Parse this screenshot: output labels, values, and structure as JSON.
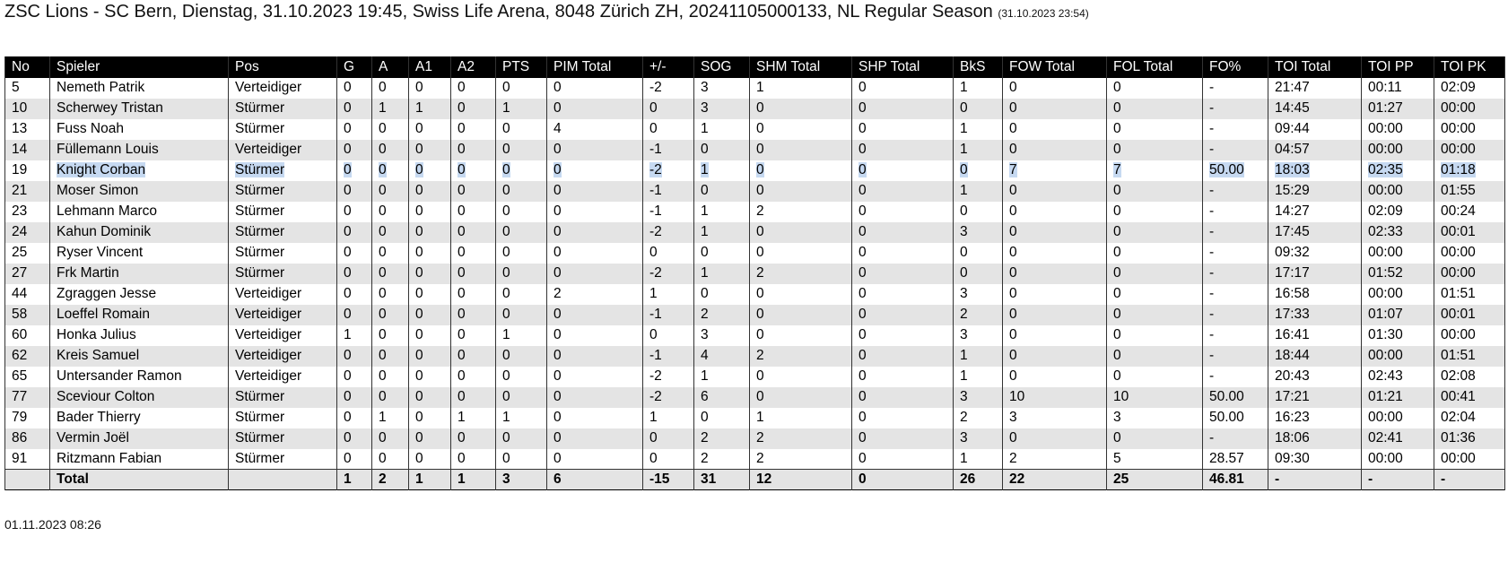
{
  "header": {
    "title": "ZSC Lions - SC Bern, Dienstag, 31.10.2023 19:45, Swiss Life Arena, 8048 Zürich ZH, 20241105000133, NL Regular Season",
    "timestamp": "(31.10.2023 23:54)"
  },
  "table": {
    "columns": [
      "No",
      "Spieler",
      "Pos",
      "G",
      "A",
      "A1",
      "A2",
      "PTS",
      "PIM Total",
      "+/-",
      "SOG",
      "SHM Total",
      "SHP Total",
      "BkS",
      "FOW Total",
      "FOL Total",
      "FO%",
      "TOI Total",
      "TOI PP",
      "TOI PK"
    ],
    "rows": [
      [
        "5",
        "Nemeth Patrik",
        "Verteidiger",
        "0",
        "0",
        "0",
        "0",
        "0",
        "0",
        "-2",
        "3",
        "1",
        "0",
        "1",
        "0",
        "0",
        "-",
        "21:47",
        "00:11",
        "02:09"
      ],
      [
        "10",
        "Scherwey Tristan",
        "Stürmer",
        "0",
        "1",
        "1",
        "0",
        "1",
        "0",
        "0",
        "3",
        "0",
        "0",
        "0",
        "0",
        "0",
        "-",
        "14:45",
        "01:27",
        "00:00"
      ],
      [
        "13",
        "Fuss Noah",
        "Stürmer",
        "0",
        "0",
        "0",
        "0",
        "0",
        "4",
        "0",
        "1",
        "0",
        "0",
        "1",
        "0",
        "0",
        "-",
        "09:44",
        "00:00",
        "00:00"
      ],
      [
        "14",
        "Füllemann Louis",
        "Verteidiger",
        "0",
        "0",
        "0",
        "0",
        "0",
        "0",
        "-1",
        "0",
        "0",
        "0",
        "1",
        "0",
        "0",
        "-",
        "04:57",
        "00:00",
        "00:00"
      ],
      [
        "19",
        "Knight Corban",
        "Stürmer",
        "0",
        "0",
        "0",
        "0",
        "0",
        "0",
        "-2",
        "1",
        "0",
        "0",
        "0",
        "7",
        "7",
        "50.00",
        "18:03",
        "02:35",
        "01:18"
      ],
      [
        "21",
        "Moser Simon",
        "Stürmer",
        "0",
        "0",
        "0",
        "0",
        "0",
        "0",
        "-1",
        "0",
        "0",
        "0",
        "1",
        "0",
        "0",
        "-",
        "15:29",
        "00:00",
        "01:55"
      ],
      [
        "23",
        "Lehmann Marco",
        "Stürmer",
        "0",
        "0",
        "0",
        "0",
        "0",
        "0",
        "-1",
        "1",
        "2",
        "0",
        "0",
        "0",
        "0",
        "-",
        "14:27",
        "02:09",
        "00:24"
      ],
      [
        "24",
        "Kahun Dominik",
        "Stürmer",
        "0",
        "0",
        "0",
        "0",
        "0",
        "0",
        "-2",
        "1",
        "0",
        "0",
        "3",
        "0",
        "0",
        "-",
        "17:45",
        "02:33",
        "00:01"
      ],
      [
        "25",
        "Ryser Vincent",
        "Stürmer",
        "0",
        "0",
        "0",
        "0",
        "0",
        "0",
        "0",
        "0",
        "0",
        "0",
        "0",
        "0",
        "0",
        "-",
        "09:32",
        "00:00",
        "00:00"
      ],
      [
        "27",
        "Frk Martin",
        "Stürmer",
        "0",
        "0",
        "0",
        "0",
        "0",
        "0",
        "-2",
        "1",
        "2",
        "0",
        "0",
        "0",
        "0",
        "-",
        "17:17",
        "01:52",
        "00:00"
      ],
      [
        "44",
        "Zgraggen Jesse",
        "Verteidiger",
        "0",
        "0",
        "0",
        "0",
        "0",
        "2",
        "1",
        "0",
        "0",
        "0",
        "3",
        "0",
        "0",
        "-",
        "16:58",
        "00:00",
        "01:51"
      ],
      [
        "58",
        "Loeffel Romain",
        "Verteidiger",
        "0",
        "0",
        "0",
        "0",
        "0",
        "0",
        "-1",
        "2",
        "0",
        "0",
        "2",
        "0",
        "0",
        "-",
        "17:33",
        "01:07",
        "00:01"
      ],
      [
        "60",
        "Honka Julius",
        "Verteidiger",
        "1",
        "0",
        "0",
        "0",
        "1",
        "0",
        "0",
        "3",
        "0",
        "0",
        "3",
        "0",
        "0",
        "-",
        "16:41",
        "01:30",
        "00:00"
      ],
      [
        "62",
        "Kreis Samuel",
        "Verteidiger",
        "0",
        "0",
        "0",
        "0",
        "0",
        "0",
        "-1",
        "4",
        "2",
        "0",
        "1",
        "0",
        "0",
        "-",
        "18:44",
        "00:00",
        "01:51"
      ],
      [
        "65",
        "Untersander Ramon",
        "Verteidiger",
        "0",
        "0",
        "0",
        "0",
        "0",
        "0",
        "-2",
        "1",
        "0",
        "0",
        "1",
        "0",
        "0",
        "-",
        "20:43",
        "02:43",
        "02:08"
      ],
      [
        "77",
        "Sceviour Colton",
        "Stürmer",
        "0",
        "0",
        "0",
        "0",
        "0",
        "0",
        "-2",
        "6",
        "0",
        "0",
        "3",
        "10",
        "10",
        "50.00",
        "17:21",
        "01:21",
        "00:41"
      ],
      [
        "79",
        "Bader Thierry",
        "Stürmer",
        "0",
        "1",
        "0",
        "1",
        "1",
        "0",
        "1",
        "0",
        "1",
        "0",
        "2",
        "3",
        "3",
        "50.00",
        "16:23",
        "00:00",
        "02:04"
      ],
      [
        "86",
        "Vermin Joël",
        "Stürmer",
        "0",
        "0",
        "0",
        "0",
        "0",
        "0",
        "0",
        "2",
        "2",
        "0",
        "3",
        "0",
        "0",
        "-",
        "18:06",
        "02:41",
        "01:36"
      ],
      [
        "91",
        "Ritzmann Fabian",
        "Stürmer",
        "0",
        "0",
        "0",
        "0",
        "0",
        "0",
        "0",
        "2",
        "2",
        "0",
        "1",
        "2",
        "5",
        "28.57",
        "09:30",
        "00:00",
        "00:00"
      ]
    ],
    "total": {
      "label": "Total",
      "values": [
        "1",
        "2",
        "1",
        "1",
        "3",
        "6",
        "-15",
        "31",
        "12",
        "0",
        "26",
        "22",
        "25",
        "46.81",
        "-",
        "-",
        "-"
      ]
    }
  },
  "footer": {
    "date": "01.11.2023 08:26"
  }
}
